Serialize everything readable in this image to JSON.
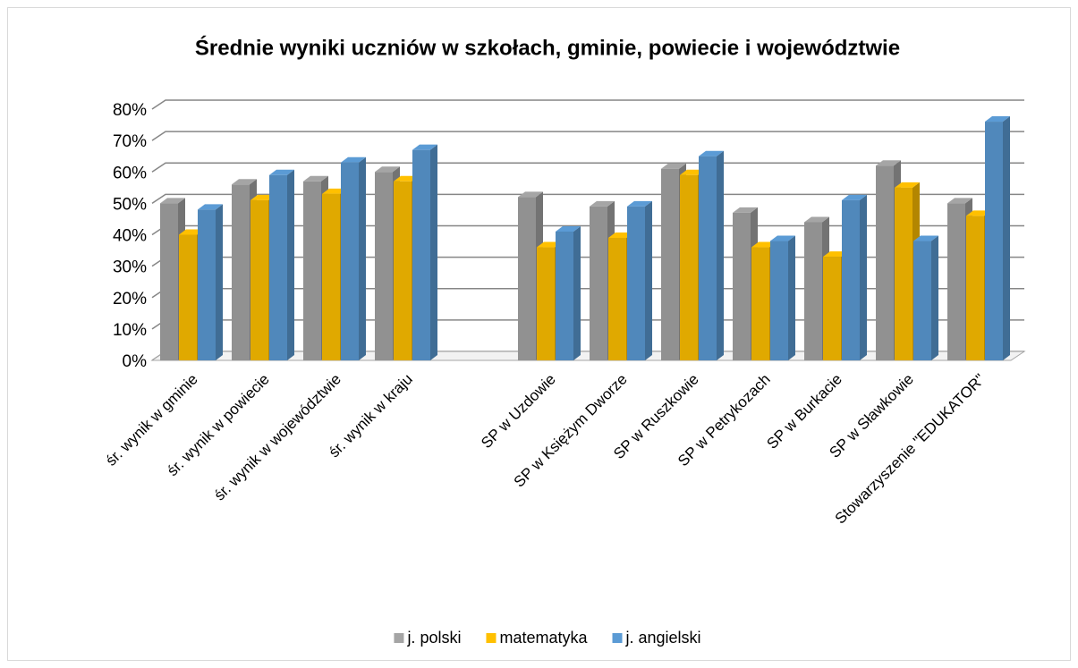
{
  "chart_data": {
    "type": "bar3d",
    "title": "Średnie wyniki uczniów w szkołach, gminie, powiecie i województwie",
    "categories": [
      "śr. wynik w gminie",
      "śr. wynik w powiecie",
      "śr. wynik w województwie",
      "śr. wynik w kraju",
      null,
      "SP w Uzdowie",
      "SP w Księżym Dworze",
      "SP w Ruszkowie",
      "SP w Petrykozach",
      "SP w Burkacie",
      "SP w Sławkowie",
      "Stowarzyszenie \"EDUKATOR\""
    ],
    "series": [
      {
        "name": "j. polski",
        "color": "#a5a5a5",
        "values": [
          50,
          56,
          57,
          60,
          null,
          52,
          49,
          61,
          47,
          44,
          62,
          50
        ]
      },
      {
        "name": "matematyka",
        "color": "#ffc000",
        "values": [
          40,
          51,
          53,
          57,
          null,
          36,
          39,
          59,
          36,
          33,
          55,
          46
        ]
      },
      {
        "name": "j. angielski",
        "color": "#5b9bd5",
        "values": [
          48,
          59,
          63,
          67,
          null,
          41,
          49,
          65,
          38,
          51,
          38,
          76
        ]
      }
    ],
    "ylim": [
      0,
      80
    ],
    "yticks": [
      {
        "value": 0,
        "label": "0%"
      },
      {
        "value": 10,
        "label": "10%"
      },
      {
        "value": 20,
        "label": "20%"
      },
      {
        "value": 30,
        "label": "30%"
      },
      {
        "value": 40,
        "label": "40%"
      },
      {
        "value": 50,
        "label": "50%"
      },
      {
        "value": 60,
        "label": "60%"
      },
      {
        "value": 70,
        "label": "70%"
      },
      {
        "value": 80,
        "label": "80%"
      }
    ],
    "grid": true,
    "legend": "bottom"
  }
}
